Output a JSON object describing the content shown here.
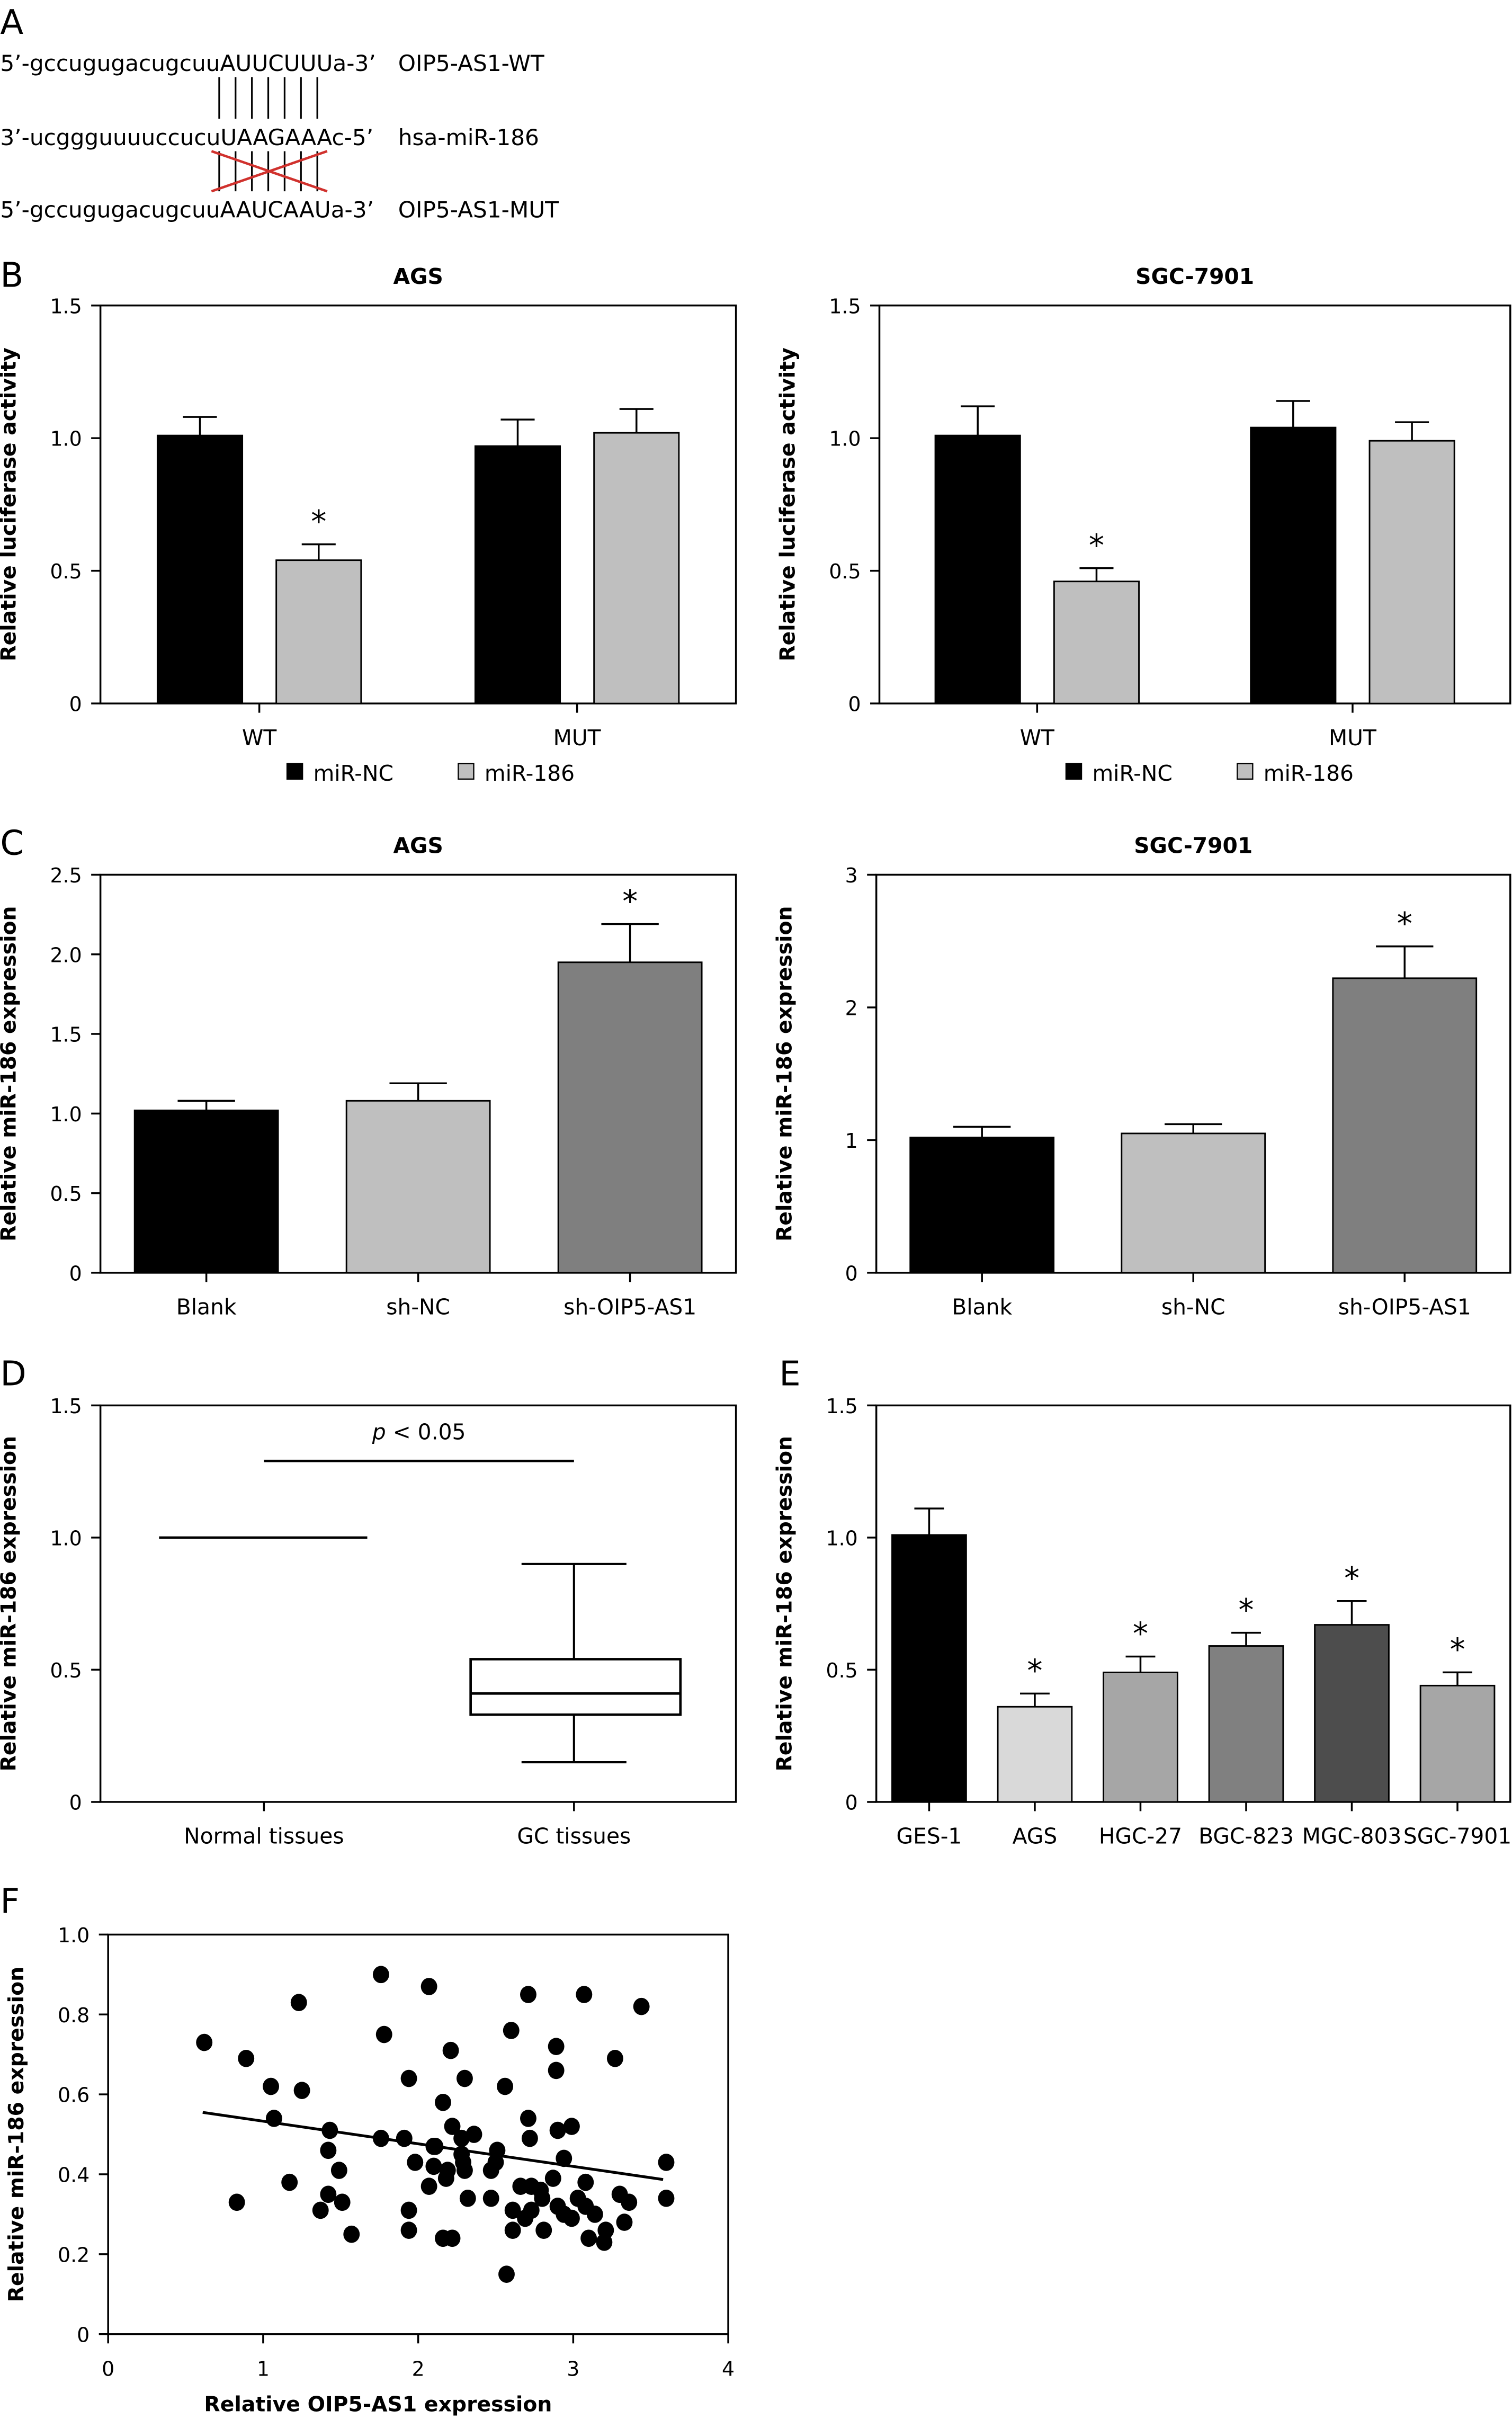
{
  "panel_letters": [
    "A",
    "B",
    "C",
    "D",
    "E",
    "F"
  ],
  "panel_a": {
    "rows": [
      {
        "sequence": "5’-gccugugacugcuuAUUCUUUa-3’",
        "label": "OIP5-AS1-WT"
      },
      {
        "sequence": "3’-ucggguuuuccucuUAAGAAAc-5’",
        "label": "hsa-miR-186"
      },
      {
        "sequence": "5’-gccugugacugcuuAAUCAAUa-3’",
        "label": "OIP5-AS1-MUT"
      }
    ],
    "pairing_lines": 7,
    "mutant_cross_color": "#d0312d"
  },
  "chart_data": [
    {
      "id": "B1",
      "type": "bar",
      "title": "AGS",
      "ylabel": "Relative luciferase activity",
      "ylim": [
        0,
        1.5
      ],
      "yticks": [
        "0",
        "0.5",
        "1.0",
        "1.5"
      ],
      "ytick_values": [
        0,
        0.5,
        1.0,
        1.5
      ],
      "categories": [
        "WT",
        "MUT"
      ],
      "series": [
        {
          "name": "miR-NC",
          "color": "#000000",
          "values": [
            1.01,
            0.97
          ],
          "errors": [
            0.07,
            0.1
          ],
          "marks": [
            "",
            ""
          ]
        },
        {
          "name": "miR-186",
          "color": "#bfbfbf",
          "values": [
            0.54,
            1.02
          ],
          "errors": [
            0.06,
            0.09
          ],
          "marks": [
            "*",
            ""
          ]
        }
      ],
      "legend": "bottom"
    },
    {
      "id": "B2",
      "type": "bar",
      "title": "SGC-7901",
      "ylabel": "Relative luciferase activity",
      "ylim": [
        0,
        1.5
      ],
      "yticks": [
        "0",
        "0.5",
        "1.0",
        "1.5"
      ],
      "ytick_values": [
        0,
        0.5,
        1.0,
        1.5
      ],
      "categories": [
        "WT",
        "MUT"
      ],
      "series": [
        {
          "name": "miR-NC",
          "color": "#000000",
          "values": [
            1.01,
            1.04
          ],
          "errors": [
            0.11,
            0.1
          ],
          "marks": [
            "",
            ""
          ]
        },
        {
          "name": "miR-186",
          "color": "#bfbfbf",
          "values": [
            0.46,
            0.99
          ],
          "errors": [
            0.05,
            0.07
          ],
          "marks": [
            "*",
            ""
          ]
        }
      ],
      "legend": "bottom"
    },
    {
      "id": "C1",
      "type": "bar",
      "title": "AGS",
      "ylabel": "Relative miR-186 expression",
      "ylim": [
        0,
        2.5
      ],
      "yticks": [
        "0",
        "0.5",
        "1.0",
        "1.5",
        "2.0",
        "2.5"
      ],
      "ytick_values": [
        0,
        0.5,
        1,
        1.5,
        2,
        2.5
      ],
      "categories": [
        "Blank",
        "sh-NC",
        "sh-OIP5-AS1"
      ],
      "values": [
        1.02,
        1.08,
        1.95
      ],
      "errors": [
        0.06,
        0.11,
        0.24
      ],
      "colors": [
        "#000000",
        "#bfbfbf",
        "#7f7f7f"
      ],
      "marks": [
        "",
        "",
        "*"
      ]
    },
    {
      "id": "C2",
      "type": "bar",
      "title": "SGC-7901",
      "ylabel": "Relative miR-186 expression",
      "ylim": [
        0,
        3
      ],
      "yticks": [
        "0",
        "1",
        "2",
        "3"
      ],
      "ytick_values": [
        0,
        1,
        2,
        3
      ],
      "categories": [
        "Blank",
        "sh-NC",
        "sh-OIP5-AS1"
      ],
      "values": [
        1.02,
        1.05,
        2.22
      ],
      "errors": [
        0.08,
        0.07,
        0.24
      ],
      "colors": [
        "#000000",
        "#bfbfbf",
        "#7f7f7f"
      ],
      "marks": [
        "",
        "",
        "*"
      ]
    },
    {
      "id": "D",
      "type": "box",
      "ylabel": "Relative miR-186 expression",
      "ylim": [
        0,
        1.5
      ],
      "yticks": [
        "0",
        "0.5",
        "1.0",
        "1.5"
      ],
      "ytick_values": [
        0,
        0.5,
        1,
        1.5
      ],
      "categories": [
        "Normal tissues",
        "GC tissues"
      ],
      "normal_level": 1.0,
      "gc_box": {
        "min": 0.15,
        "q1": 0.33,
        "median": 0.41,
        "q3": 0.54,
        "max": 0.9
      },
      "annotation": {
        "p_label": "p",
        "text": " < 0.05",
        "level": 1.29
      }
    },
    {
      "id": "E",
      "type": "bar",
      "ylabel": "Relative miR-186 expression",
      "ylim": [
        0,
        1.5
      ],
      "yticks": [
        "0",
        "0.5",
        "1.0",
        "1.5"
      ],
      "ytick_values": [
        0,
        0.5,
        1,
        1.5
      ],
      "categories": [
        "GES-1",
        "AGS",
        "HGC-27",
        "BGC-823",
        "MGC-803",
        "SGC-7901"
      ],
      "values": [
        1.01,
        0.36,
        0.49,
        0.59,
        0.67,
        0.44
      ],
      "errors": [
        0.1,
        0.05,
        0.06,
        0.05,
        0.09,
        0.05
      ],
      "colors": [
        "#000000",
        "#d9d9d9",
        "#a6a6a6",
        "#808080",
        "#4d4d4d",
        "#a6a6a6"
      ],
      "marks": [
        "",
        "*",
        "*",
        "*",
        "*",
        "*"
      ]
    },
    {
      "id": "F",
      "type": "scatter",
      "xlabel": "Relative OIP5-AS1 expression",
      "ylabel": "Relative miR-186 expression",
      "xlim": [
        0,
        4
      ],
      "ylim": [
        0,
        1.0
      ],
      "xticks": [
        "0",
        "1",
        "2",
        "3",
        "4"
      ],
      "xtick_values": [
        0,
        1,
        2,
        3,
        4
      ],
      "yticks": [
        "0",
        "0.2",
        "0.4",
        "0.6",
        "0.8",
        "1.0"
      ],
      "ytick_values": [
        0,
        0.2,
        0.4,
        0.6,
        0.8,
        1.0
      ],
      "points": [
        [
          0.62,
          0.73
        ],
        [
          0.89,
          0.69
        ],
        [
          1.23,
          0.83
        ],
        [
          1.05,
          0.62
        ],
        [
          1.25,
          0.61
        ],
        [
          1.07,
          0.54
        ],
        [
          0.83,
          0.33
        ],
        [
          1.17,
          0.38
        ],
        [
          1.37,
          0.31
        ],
        [
          1.42,
          0.35
        ],
        [
          1.43,
          0.51
        ],
        [
          1.42,
          0.46
        ],
        [
          1.49,
          0.41
        ],
        [
          1.51,
          0.33
        ],
        [
          1.57,
          0.25
        ],
        [
          1.76,
          0.9
        ],
        [
          1.78,
          0.75
        ],
        [
          1.76,
          0.49
        ],
        [
          1.91,
          0.49
        ],
        [
          1.94,
          0.64
        ],
        [
          1.98,
          0.43
        ],
        [
          1.94,
          0.31
        ],
        [
          1.94,
          0.26
        ],
        [
          2.07,
          0.87
        ],
        [
          2.21,
          0.71
        ],
        [
          2.3,
          0.64
        ],
        [
          2.16,
          0.58
        ],
        [
          2.22,
          0.52
        ],
        [
          2.28,
          0.49
        ],
        [
          2.36,
          0.5
        ],
        [
          2.1,
          0.47
        ],
        [
          2.11,
          0.47
        ],
        [
          2.1,
          0.42
        ],
        [
          2.19,
          0.41
        ],
        [
          2.18,
          0.39
        ],
        [
          2.07,
          0.37
        ],
        [
          2.28,
          0.45
        ],
        [
          2.29,
          0.43
        ],
        [
          2.3,
          0.41
        ],
        [
          2.32,
          0.34
        ],
        [
          2.16,
          0.24
        ],
        [
          2.22,
          0.24
        ],
        [
          2.47,
          0.34
        ],
        [
          2.47,
          0.41
        ],
        [
          2.5,
          0.43
        ],
        [
          2.51,
          0.46
        ],
        [
          2.56,
          0.62
        ],
        [
          2.6,
          0.76
        ],
        [
          2.71,
          0.85
        ],
        [
          2.71,
          0.54
        ],
        [
          2.72,
          0.49
        ],
        [
          2.66,
          0.37
        ],
        [
          2.73,
          0.37
        ],
        [
          2.79,
          0.36
        ],
        [
          2.8,
          0.34
        ],
        [
          2.73,
          0.31
        ],
        [
          2.69,
          0.29
        ],
        [
          2.61,
          0.31
        ],
        [
          2.61,
          0.26
        ],
        [
          2.81,
          0.26
        ],
        [
          2.57,
          0.15
        ],
        [
          2.89,
          0.72
        ],
        [
          2.89,
          0.66
        ],
        [
          2.9,
          0.51
        ],
        [
          2.99,
          0.52
        ],
        [
          2.94,
          0.44
        ],
        [
          2.87,
          0.39
        ],
        [
          2.9,
          0.32
        ],
        [
          2.94,
          0.3
        ],
        [
          2.99,
          0.29
        ],
        [
          3.03,
          0.34
        ],
        [
          3.08,
          0.38
        ],
        [
          3.08,
          0.32
        ],
        [
          3.14,
          0.3
        ],
        [
          3.1,
          0.24
        ],
        [
          3.21,
          0.26
        ],
        [
          3.2,
          0.23
        ],
        [
          3.07,
          0.85
        ],
        [
          3.27,
          0.69
        ],
        [
          3.44,
          0.82
        ],
        [
          3.3,
          0.35
        ],
        [
          3.36,
          0.33
        ],
        [
          3.33,
          0.28
        ],
        [
          3.6,
          0.43
        ],
        [
          3.6,
          0.34
        ]
      ],
      "fit_line": [
        [
          0.61,
          0.555
        ],
        [
          3.58,
          0.387
        ]
      ]
    }
  ]
}
